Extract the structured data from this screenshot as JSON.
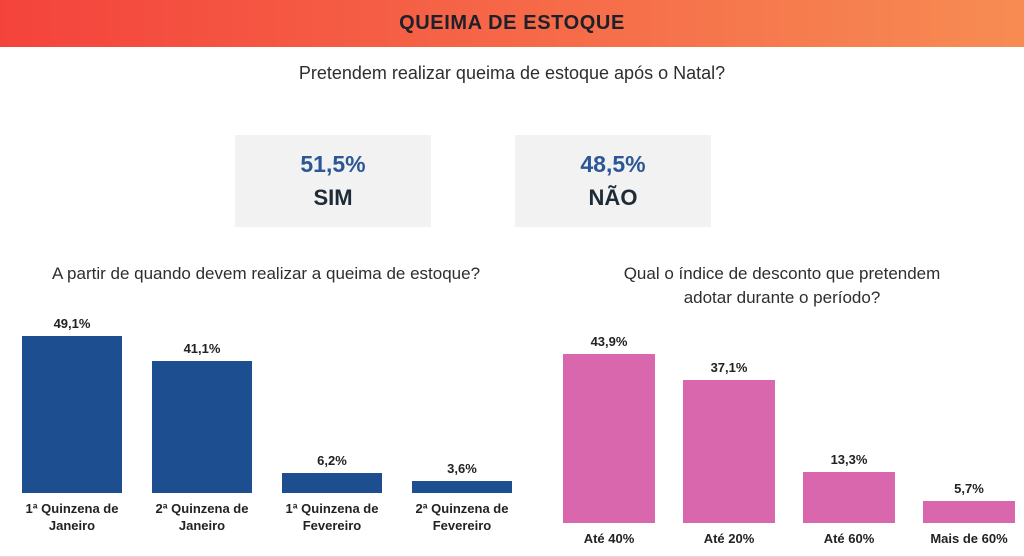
{
  "header": {
    "title": "QUEIMA DE ESTOQUE",
    "gradient_from": "#f4433c",
    "gradient_to": "#f78c53",
    "text_color": "#20202a"
  },
  "question": "Pretendem realizar queima de estoque após o Natal?",
  "summary": {
    "accent_blue": "#2b5797",
    "boxes": [
      {
        "value": "51,5%",
        "label": "SIM"
      },
      {
        "value": "48,5%",
        "label": "NÃO"
      }
    ]
  },
  "chart_data": [
    {
      "type": "bar",
      "title": "A partir de quando devem realizar a queima de estoque?",
      "categories": [
        "1ª Quinzena de Janeiro",
        "2ª Quinzena de Janeiro",
        "1ª Quinzena de Fevereiro",
        "2ª Quinzena de Fevereiro"
      ],
      "category_lines": [
        [
          "1ª Quinzena de",
          "Janeiro"
        ],
        [
          "2ª Quinzena de",
          "Janeiro"
        ],
        [
          "1ª Quinzena de",
          "Fevereiro"
        ],
        [
          "2ª Quinzena de",
          "Fevereiro"
        ]
      ],
      "values": [
        49.1,
        41.1,
        6.2,
        3.6
      ],
      "value_labels": [
        "49,1%",
        "41,1%",
        "6,2%",
        "3,6%"
      ],
      "bar_color": "#1d4e8f",
      "unit": "%",
      "ylim": [
        0,
        55
      ],
      "grid": false,
      "value_label_position": "above-bar",
      "xlabel": "",
      "ylabel": ""
    },
    {
      "type": "bar",
      "title": "Qual o índice de desconto que pretendem adotar durante o período?",
      "title_lines": [
        "Qual o índice de desconto que pretendem",
        "adotar durante o período?"
      ],
      "categories": [
        "Até 40%",
        "Até 20%",
        "Até 60%",
        "Mais de 60%"
      ],
      "values": [
        43.9,
        37.1,
        13.3,
        5.7
      ],
      "value_labels": [
        "43,9%",
        "37,1%",
        "13,3%",
        "5,7%"
      ],
      "bar_color": "#d867ae",
      "unit": "%",
      "ylim": [
        0,
        50
      ],
      "grid": false,
      "value_label_position": "above-bar",
      "xlabel": "",
      "ylabel": ""
    }
  ]
}
